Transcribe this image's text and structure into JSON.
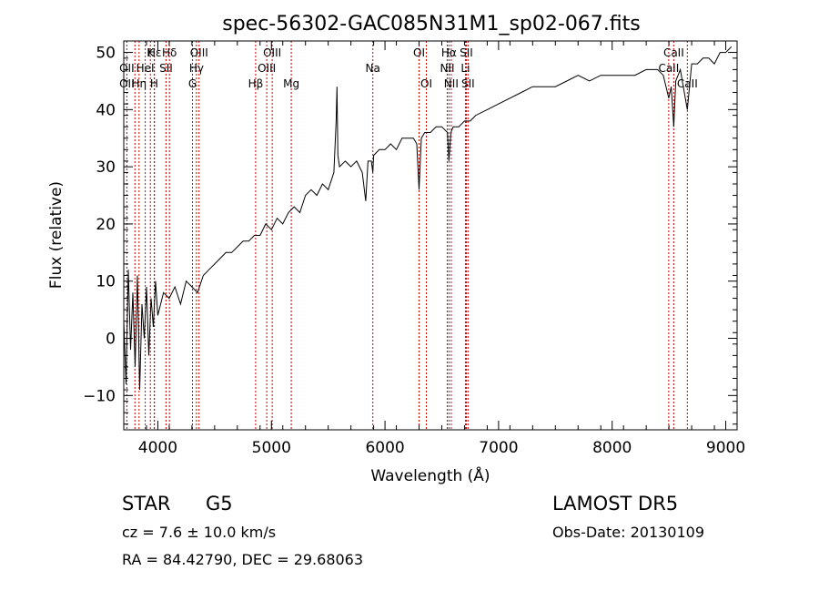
{
  "chart_data": {
    "type": "line",
    "title": "spec-56302-GAC085N31M1_sp02-067.fits",
    "xlabel": "Wavelength (Å)",
    "ylabel": "Flux (relative)",
    "xlim": [
      3700,
      9100
    ],
    "ylim": [
      -16,
      52
    ],
    "xticks": [
      4000,
      5000,
      6000,
      7000,
      8000,
      9000
    ],
    "yticks": [
      -10,
      0,
      10,
      20,
      30,
      40,
      50
    ],
    "grid": false,
    "line_color": "#000000",
    "marker_color": "#cc0000",
    "series": [
      {
        "x": [
          3700,
          3720,
          3740,
          3760,
          3780,
          3800,
          3820,
          3840,
          3860,
          3880,
          3900,
          3920,
          3940,
          3960,
          3980,
          4000,
          4050,
          4100,
          4150,
          4200,
          4250,
          4300,
          4350,
          4400,
          4450,
          4500,
          4550,
          4600,
          4650,
          4700,
          4750,
          4800,
          4850,
          4900,
          4950,
          5000,
          5050,
          5100,
          5150,
          5200,
          5250,
          5300,
          5350,
          5400,
          5450,
          5500,
          5550,
          5570,
          5577,
          5585,
          5600,
          5650,
          5700,
          5750,
          5800,
          5830,
          5850,
          5880,
          5893,
          5900,
          5950,
          6000,
          6050,
          6100,
          6150,
          6200,
          6250,
          6280,
          6300,
          6320,
          6350,
          6400,
          6450,
          6500,
          6550,
          6563,
          6580,
          6600,
          6650,
          6700,
          6750,
          6800,
          6900,
          7000,
          7100,
          7200,
          7300,
          7400,
          7500,
          7600,
          7700,
          7800,
          7900,
          8000,
          8100,
          8200,
          8300,
          8400,
          8450,
          8498,
          8520,
          8542,
          8560,
          8600,
          8662,
          8700,
          8750,
          8800,
          8850,
          8900,
          8950,
          9000,
          9050
        ],
        "y": [
          3,
          -8,
          12,
          -2,
          8,
          -5,
          11,
          -9,
          6,
          0,
          9,
          -3,
          7,
          2,
          10,
          4,
          8,
          7,
          9,
          6,
          10,
          9,
          8,
          11,
          12,
          13,
          14,
          15,
          15,
          16,
          17,
          17,
          18,
          18,
          20,
          19,
          21,
          20,
          22,
          23,
          22,
          25,
          26,
          25,
          27,
          26,
          29,
          38,
          44,
          32,
          30,
          31,
          30,
          31,
          29,
          24,
          31,
          31,
          29,
          32,
          33,
          33,
          34,
          33,
          35,
          35,
          35,
          34,
          26,
          35,
          36,
          36,
          37,
          37,
          36,
          31,
          36,
          37,
          37,
          38,
          38,
          39,
          40,
          41,
          42,
          43,
          44,
          44,
          44,
          45,
          46,
          45,
          46,
          46,
          46,
          46,
          47,
          47,
          46,
          42,
          44,
          37,
          45,
          47,
          40,
          48,
          48,
          49,
          49,
          48,
          50,
          50,
          51
        ]
      }
    ],
    "line_markers": [
      {
        "label": "Hε",
        "x": 3970,
        "row": 0
      },
      {
        "label": "K",
        "x": 3934,
        "row": 0
      },
      {
        "label": "Hδ",
        "x": 4102,
        "row": 0
      },
      {
        "label": "OIII",
        "x": 4363,
        "row": 0
      },
      {
        "label": "OIII",
        "x": 5007,
        "row": 0
      },
      {
        "label": "OI",
        "x": 6300,
        "row": 0
      },
      {
        "label": "Hα",
        "x": 6563,
        "row": 0
      },
      {
        "label": "SII",
        "x": 6716,
        "row": 0
      },
      {
        "label": "CaII",
        "x": 8542,
        "row": 0
      },
      {
        "label": "OII",
        "x": 3727,
        "row": 1
      },
      {
        "label": "HeI",
        "x": 3889,
        "row": 1
      },
      {
        "label": "SII",
        "x": 4072,
        "row": 1
      },
      {
        "label": "Hγ",
        "x": 4340,
        "row": 1
      },
      {
        "label": "OIII",
        "x": 4959,
        "row": 1
      },
      {
        "label": "Na",
        "x": 5893,
        "row": 1
      },
      {
        "label": "NII",
        "x": 6548,
        "row": 1
      },
      {
        "label": "Li",
        "x": 6708,
        "row": 1
      },
      {
        "label": "CaII",
        "x": 8498,
        "row": 1
      },
      {
        "label": "OII",
        "x": 3727,
        "row": 2
      },
      {
        "label": "Hη",
        "x": 3835,
        "row": 2
      },
      {
        "label": "H",
        "x": 3968,
        "row": 2
      },
      {
        "label": "G",
        "x": 4305,
        "row": 2
      },
      {
        "label": "Hβ",
        "x": 4861,
        "row": 2
      },
      {
        "label": "Mg",
        "x": 5175,
        "row": 2
      },
      {
        "label": "OI",
        "x": 6364,
        "row": 2
      },
      {
        "label": "NII",
        "x": 6583,
        "row": 2
      },
      {
        "label": "SII",
        "x": 6731,
        "row": 2
      },
      {
        "label": "CaII",
        "x": 8662,
        "row": 2
      }
    ],
    "marker_lines": [
      3727,
      3798,
      3835,
      3889,
      3934,
      3968,
      3970,
      4072,
      4102,
      4305,
      4340,
      4363,
      4861,
      4959,
      5007,
      5175,
      5893,
      6300,
      6364,
      6548,
      6563,
      6583,
      6708,
      6716,
      6731,
      8498,
      8542,
      8662
    ]
  },
  "info": {
    "object": "STAR",
    "subclass": "G5",
    "survey": "LAMOST DR5",
    "cz": "cz = 7.6 ± 10.0 km/s",
    "obs_date": "Obs-Date: 20130109",
    "coords": "RA =  84.42790, DEC =  29.68063"
  }
}
